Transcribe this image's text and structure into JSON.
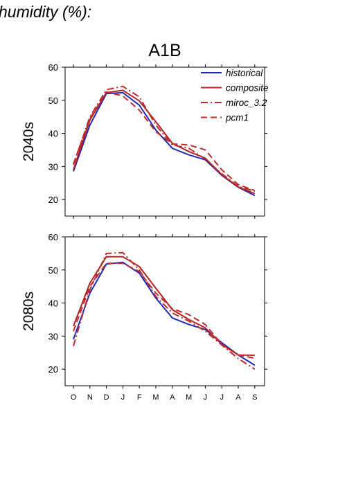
{
  "heading": "humidity (%):",
  "chart_data": [
    {
      "type": "line",
      "title": "A1B",
      "ylabel": "2040s",
      "categories": [
        "O",
        "N",
        "D",
        "J",
        "F",
        "M",
        "A",
        "M",
        "J",
        "J",
        "A",
        "S"
      ],
      "ylim": [
        15,
        60
      ],
      "yticks": [
        "20",
        "30",
        "40",
        "50",
        "60"
      ],
      "legend": "top-right",
      "series": [
        {
          "name": "historical",
          "color": "#1d2bb8",
          "dash": "solid",
          "values": [
            28.5,
            42.5,
            52,
            52.3,
            48.5,
            41,
            35.5,
            33.5,
            32,
            27.3,
            23.7,
            21.2
          ]
        },
        {
          "name": "composite",
          "color": "#b22222",
          "dash": "solid",
          "values": [
            29,
            44,
            52.3,
            53,
            49.8,
            43.5,
            37,
            34.5,
            32.5,
            27.5,
            23.8,
            21.8
          ]
        },
        {
          "name": "miroc_3.2",
          "color": "#c0292b",
          "dash": "dashdot",
          "values": [
            30.5,
            45,
            53.2,
            54.2,
            51,
            42.5,
            36.5,
            35.5,
            32.2,
            27.8,
            24,
            22.5
          ]
        },
        {
          "name": "pcm1",
          "color": "#c0292b",
          "dash": "dash",
          "values": [
            30.8,
            44.5,
            52.5,
            51.3,
            47,
            40.5,
            36.8,
            36.5,
            35,
            29,
            24.5,
            22.7
          ]
        }
      ]
    },
    {
      "type": "line",
      "title": "",
      "ylabel": "2080s",
      "categories": [
        "O",
        "N",
        "D",
        "J",
        "F",
        "M",
        "A",
        "M",
        "J",
        "J",
        "A",
        "S"
      ],
      "ylim": [
        15,
        60
      ],
      "yticks": [
        "20",
        "30",
        "40",
        "50",
        "60"
      ],
      "series": [
        {
          "name": "historical",
          "color": "#1d2bb8",
          "dash": "solid",
          "values": [
            29,
            43,
            51.8,
            52.3,
            49,
            41.5,
            35.5,
            33.5,
            32,
            28,
            24.3,
            21.2
          ]
        },
        {
          "name": "composite",
          "color": "#b22222",
          "dash": "solid",
          "values": [
            33,
            46,
            54,
            54,
            51,
            44.5,
            38,
            35,
            32.5,
            27.5,
            24.3,
            24.2
          ]
        },
        {
          "name": "miroc_3.2",
          "color": "#c0292b",
          "dash": "dashdot",
          "values": [
            27,
            44,
            55,
            55.2,
            50,
            42,
            37,
            34.5,
            31.5,
            27.3,
            23.2,
            20
          ]
        },
        {
          "name": "pcm1",
          "color": "#c0292b",
          "dash": "dash",
          "values": [
            31.5,
            45,
            52,
            52,
            49.5,
            43,
            38.3,
            36.5,
            33.5,
            27.5,
            24.3,
            23.3
          ]
        }
      ]
    }
  ]
}
